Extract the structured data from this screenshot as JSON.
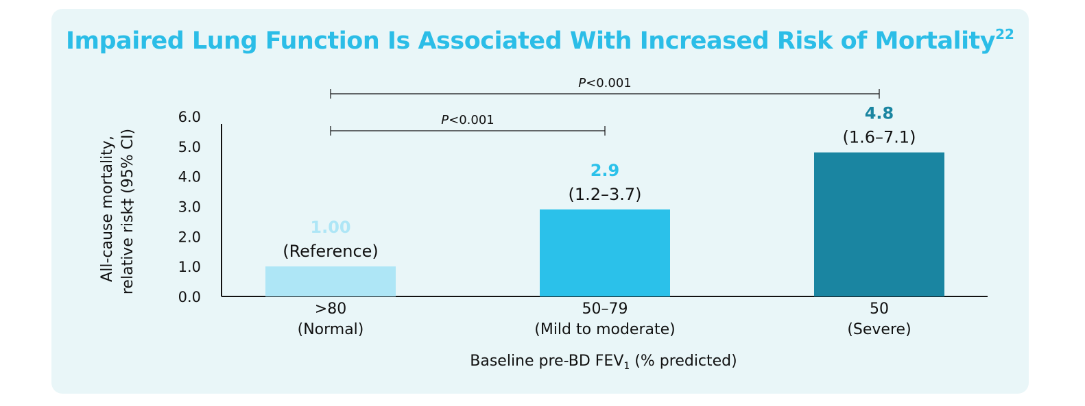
{
  "chart_data": {
    "type": "bar",
    "title": "Impaired Lung Function Is Associated With Increased Risk of Mortality",
    "title_superscript": "22",
    "categories": [
      ">80",
      "50–79",
      "50"
    ],
    "category_sublabels": [
      "(Normal)",
      "(Mild to moderate)",
      "(Severe)"
    ],
    "values": [
      1.0,
      2.9,
      4.8
    ],
    "value_labels": [
      "1.00",
      "2.9",
      "4.8"
    ],
    "ci_labels": [
      "(Reference)",
      "(1.2–3.7)",
      "(1.6–7.1)"
    ],
    "bar_colors": [
      "#aee6f6",
      "#2bc1ea",
      "#1a85a1"
    ],
    "ylabel_line1": "All-cause mortality,",
    "ylabel_line2": "relative risk‡ (95% CI)",
    "xlabel": "Baseline pre-BD FEV",
    "xlabel_subscript": "1",
    "xlabel_suffix": " (% predicted)",
    "ylim": [
      0,
      6
    ],
    "yticks": [
      "0.0",
      "1.0",
      "2.0",
      "3.0",
      "4.0",
      "5.0",
      "6.0"
    ],
    "grid": false,
    "significance": [
      {
        "from": 0,
        "to": 1,
        "label_italic": "P",
        "label_rest": "<0.001"
      },
      {
        "from": 0,
        "to": 2,
        "label_italic": "P",
        "label_rest": "<0.001"
      }
    ]
  }
}
